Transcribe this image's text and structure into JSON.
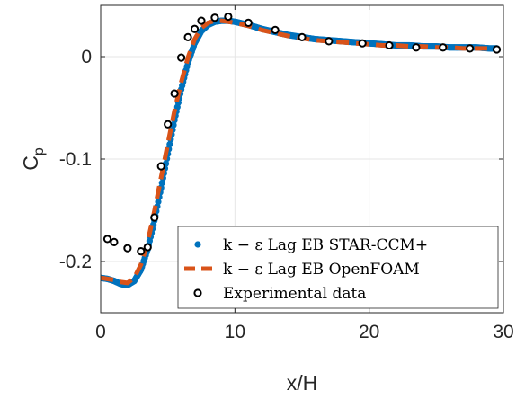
{
  "chart_data": {
    "type": "line",
    "xlabel": "x/H",
    "ylabel": "C",
    "ylabel_sub": "p",
    "xlim": [
      0,
      30
    ],
    "ylim": [
      -0.25,
      0.05
    ],
    "xticks": [
      0,
      10,
      20,
      30
    ],
    "yticks": [
      -0.2,
      -0.1,
      0
    ],
    "xtick_labels": [
      "0",
      "10",
      "20",
      "30"
    ],
    "ytick_labels": [
      "-0.2",
      "-0.1",
      "0"
    ],
    "grid": true,
    "legend_position": "bottom-right",
    "series": [
      {
        "name": "k − ε Lag EB STAR-CCM+",
        "style": "dots",
        "color": "#0072BD",
        "x": [
          0,
          0.5,
          1,
          1.5,
          2,
          2.5,
          3,
          3.5,
          4,
          4.5,
          5,
          5.5,
          6,
          6.5,
          7,
          7.5,
          8,
          8.5,
          9,
          9.5,
          10,
          11,
          12,
          13,
          14,
          15,
          16,
          17,
          18,
          19,
          20,
          21,
          22,
          23,
          24,
          25,
          26,
          27,
          28,
          29,
          29.5
        ],
        "y": [
          -0.216,
          -0.217,
          -0.219,
          -0.222,
          -0.223,
          -0.219,
          -0.208,
          -0.188,
          -0.16,
          -0.128,
          -0.095,
          -0.062,
          -0.032,
          -0.006,
          0.013,
          0.025,
          0.031,
          0.034,
          0.035,
          0.035,
          0.034,
          0.031,
          0.027,
          0.024,
          0.021,
          0.019,
          0.017,
          0.016,
          0.015,
          0.014,
          0.013,
          0.012,
          0.011,
          0.011,
          0.01,
          0.01,
          0.009,
          0.009,
          0.009,
          0.008,
          0.008
        ]
      },
      {
        "name": "k − ε Lag EB OpenFOAM",
        "style": "dashed",
        "color": "#D95319",
        "x": [
          0,
          0.5,
          1,
          1.5,
          2,
          2.5,
          3,
          3.5,
          4,
          4.5,
          5,
          5.5,
          6,
          6.5,
          7,
          7.5,
          8,
          8.5,
          9,
          9.5,
          10,
          11,
          12,
          13,
          14,
          15,
          16,
          17,
          18,
          19,
          20,
          21,
          22,
          23,
          24,
          25,
          26,
          27,
          28,
          29,
          29.5
        ],
        "y": [
          -0.216,
          -0.217,
          -0.218,
          -0.22,
          -0.221,
          -0.216,
          -0.203,
          -0.181,
          -0.151,
          -0.118,
          -0.085,
          -0.053,
          -0.025,
          -0.001,
          0.017,
          0.028,
          0.033,
          0.035,
          0.035,
          0.034,
          0.033,
          0.03,
          0.026,
          0.023,
          0.02,
          0.018,
          0.016,
          0.015,
          0.014,
          0.013,
          0.012,
          0.011,
          0.011,
          0.01,
          0.01,
          0.009,
          0.009,
          0.008,
          0.008,
          0.008,
          0.008
        ]
      },
      {
        "name": "Experimental data",
        "style": "circles",
        "color": "#000000",
        "x": [
          0.5,
          1.0,
          2.0,
          3.0,
          3.5,
          4.0,
          4.5,
          5.0,
          5.5,
          6.0,
          6.5,
          7.0,
          7.5,
          8.5,
          9.5,
          11.0,
          13.0,
          15.0,
          17.0,
          19.5,
          21.5,
          23.5,
          25.5,
          27.5,
          29.5
        ],
        "y": [
          -0.178,
          -0.181,
          -0.187,
          -0.19,
          -0.186,
          -0.157,
          -0.107,
          -0.066,
          -0.036,
          -0.001,
          0.019,
          0.027,
          0.035,
          0.038,
          0.039,
          0.033,
          0.026,
          0.019,
          0.015,
          0.013,
          0.011,
          0.009,
          0.009,
          0.008,
          0.007
        ]
      }
    ]
  }
}
